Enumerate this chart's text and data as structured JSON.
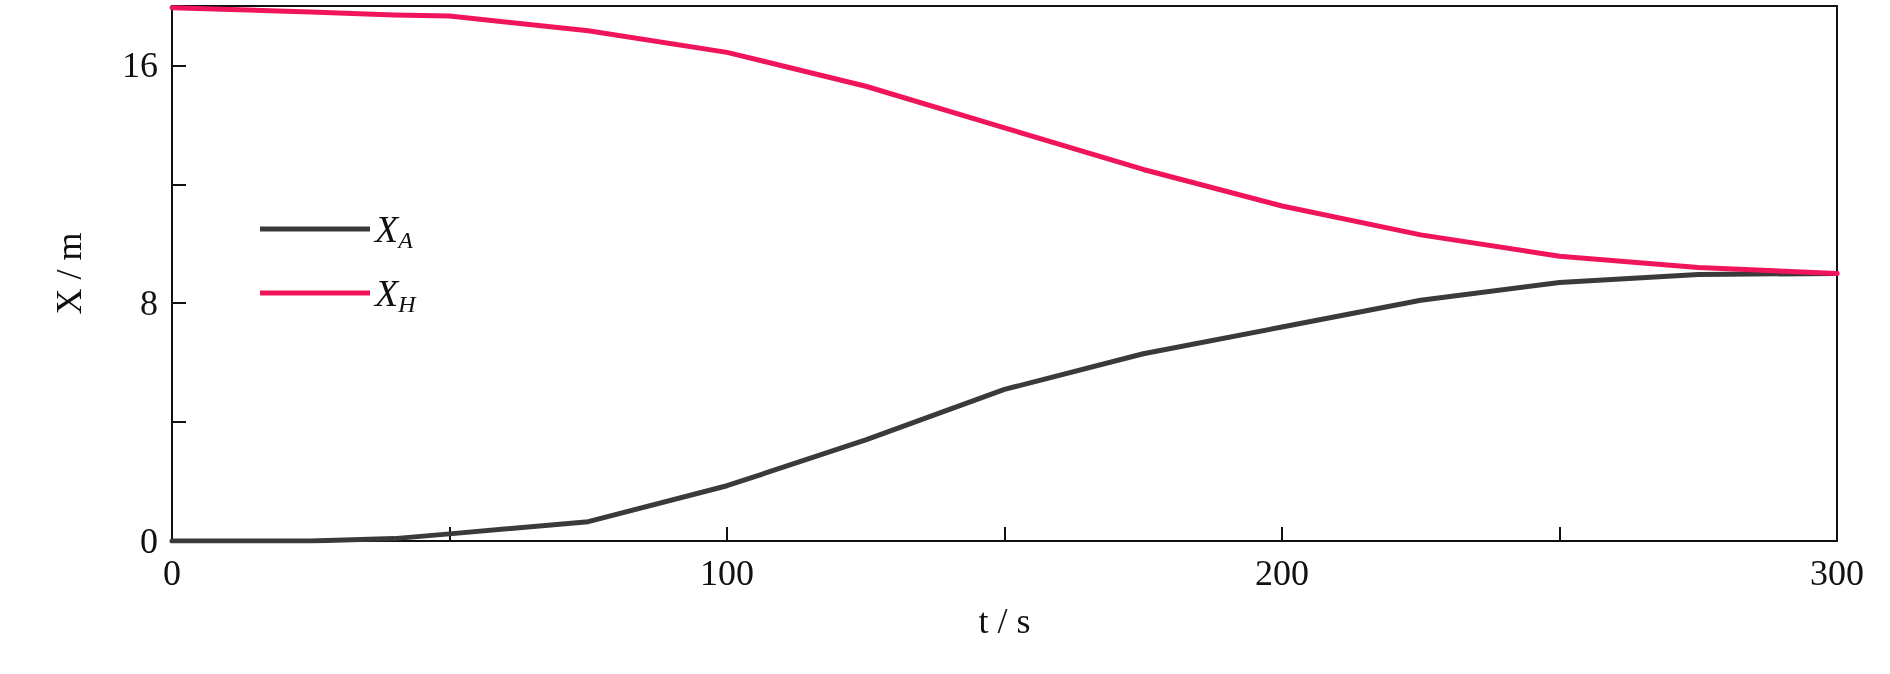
{
  "chart_data": {
    "type": "line",
    "xlabel": "t / s",
    "ylabel": "X / m",
    "x": [
      0,
      25,
      40,
      50,
      75,
      100,
      125,
      150,
      175,
      200,
      225,
      250,
      275,
      300
    ],
    "series": [
      {
        "name": "X$_{A}$",
        "color": "#3a3a3a",
        "values": [
          0,
          0,
          0.08,
          0.24,
          0.65,
          1.86,
          3.4,
          5.1,
          6.3,
          7.2,
          8.1,
          8.7,
          8.97,
          9.0
        ]
      },
      {
        "name": "X$_{H}$",
        "color": "#f0145a",
        "values": [
          17.94,
          17.8,
          17.7,
          17.66,
          17.17,
          16.44,
          15.3,
          13.9,
          12.5,
          11.27,
          10.3,
          9.58,
          9.2,
          9.0
        ]
      }
    ],
    "xlim": [
      0,
      300
    ],
    "xticks": [
      0,
      {
        "value": 50,
        "label": null
      },
      100,
      {
        "value": 150,
        "label": null
      },
      200,
      {
        "value": 250,
        "label": null
      },
      300
    ],
    "ylim": [
      0,
      18
    ],
    "yticks": [
      0,
      {
        "value": 4,
        "label": null
      },
      8,
      {
        "value": 12,
        "label": null
      },
      16
    ],
    "grid": false,
    "legend": "left",
    "marker": "none",
    "line_style": "solid"
  }
}
